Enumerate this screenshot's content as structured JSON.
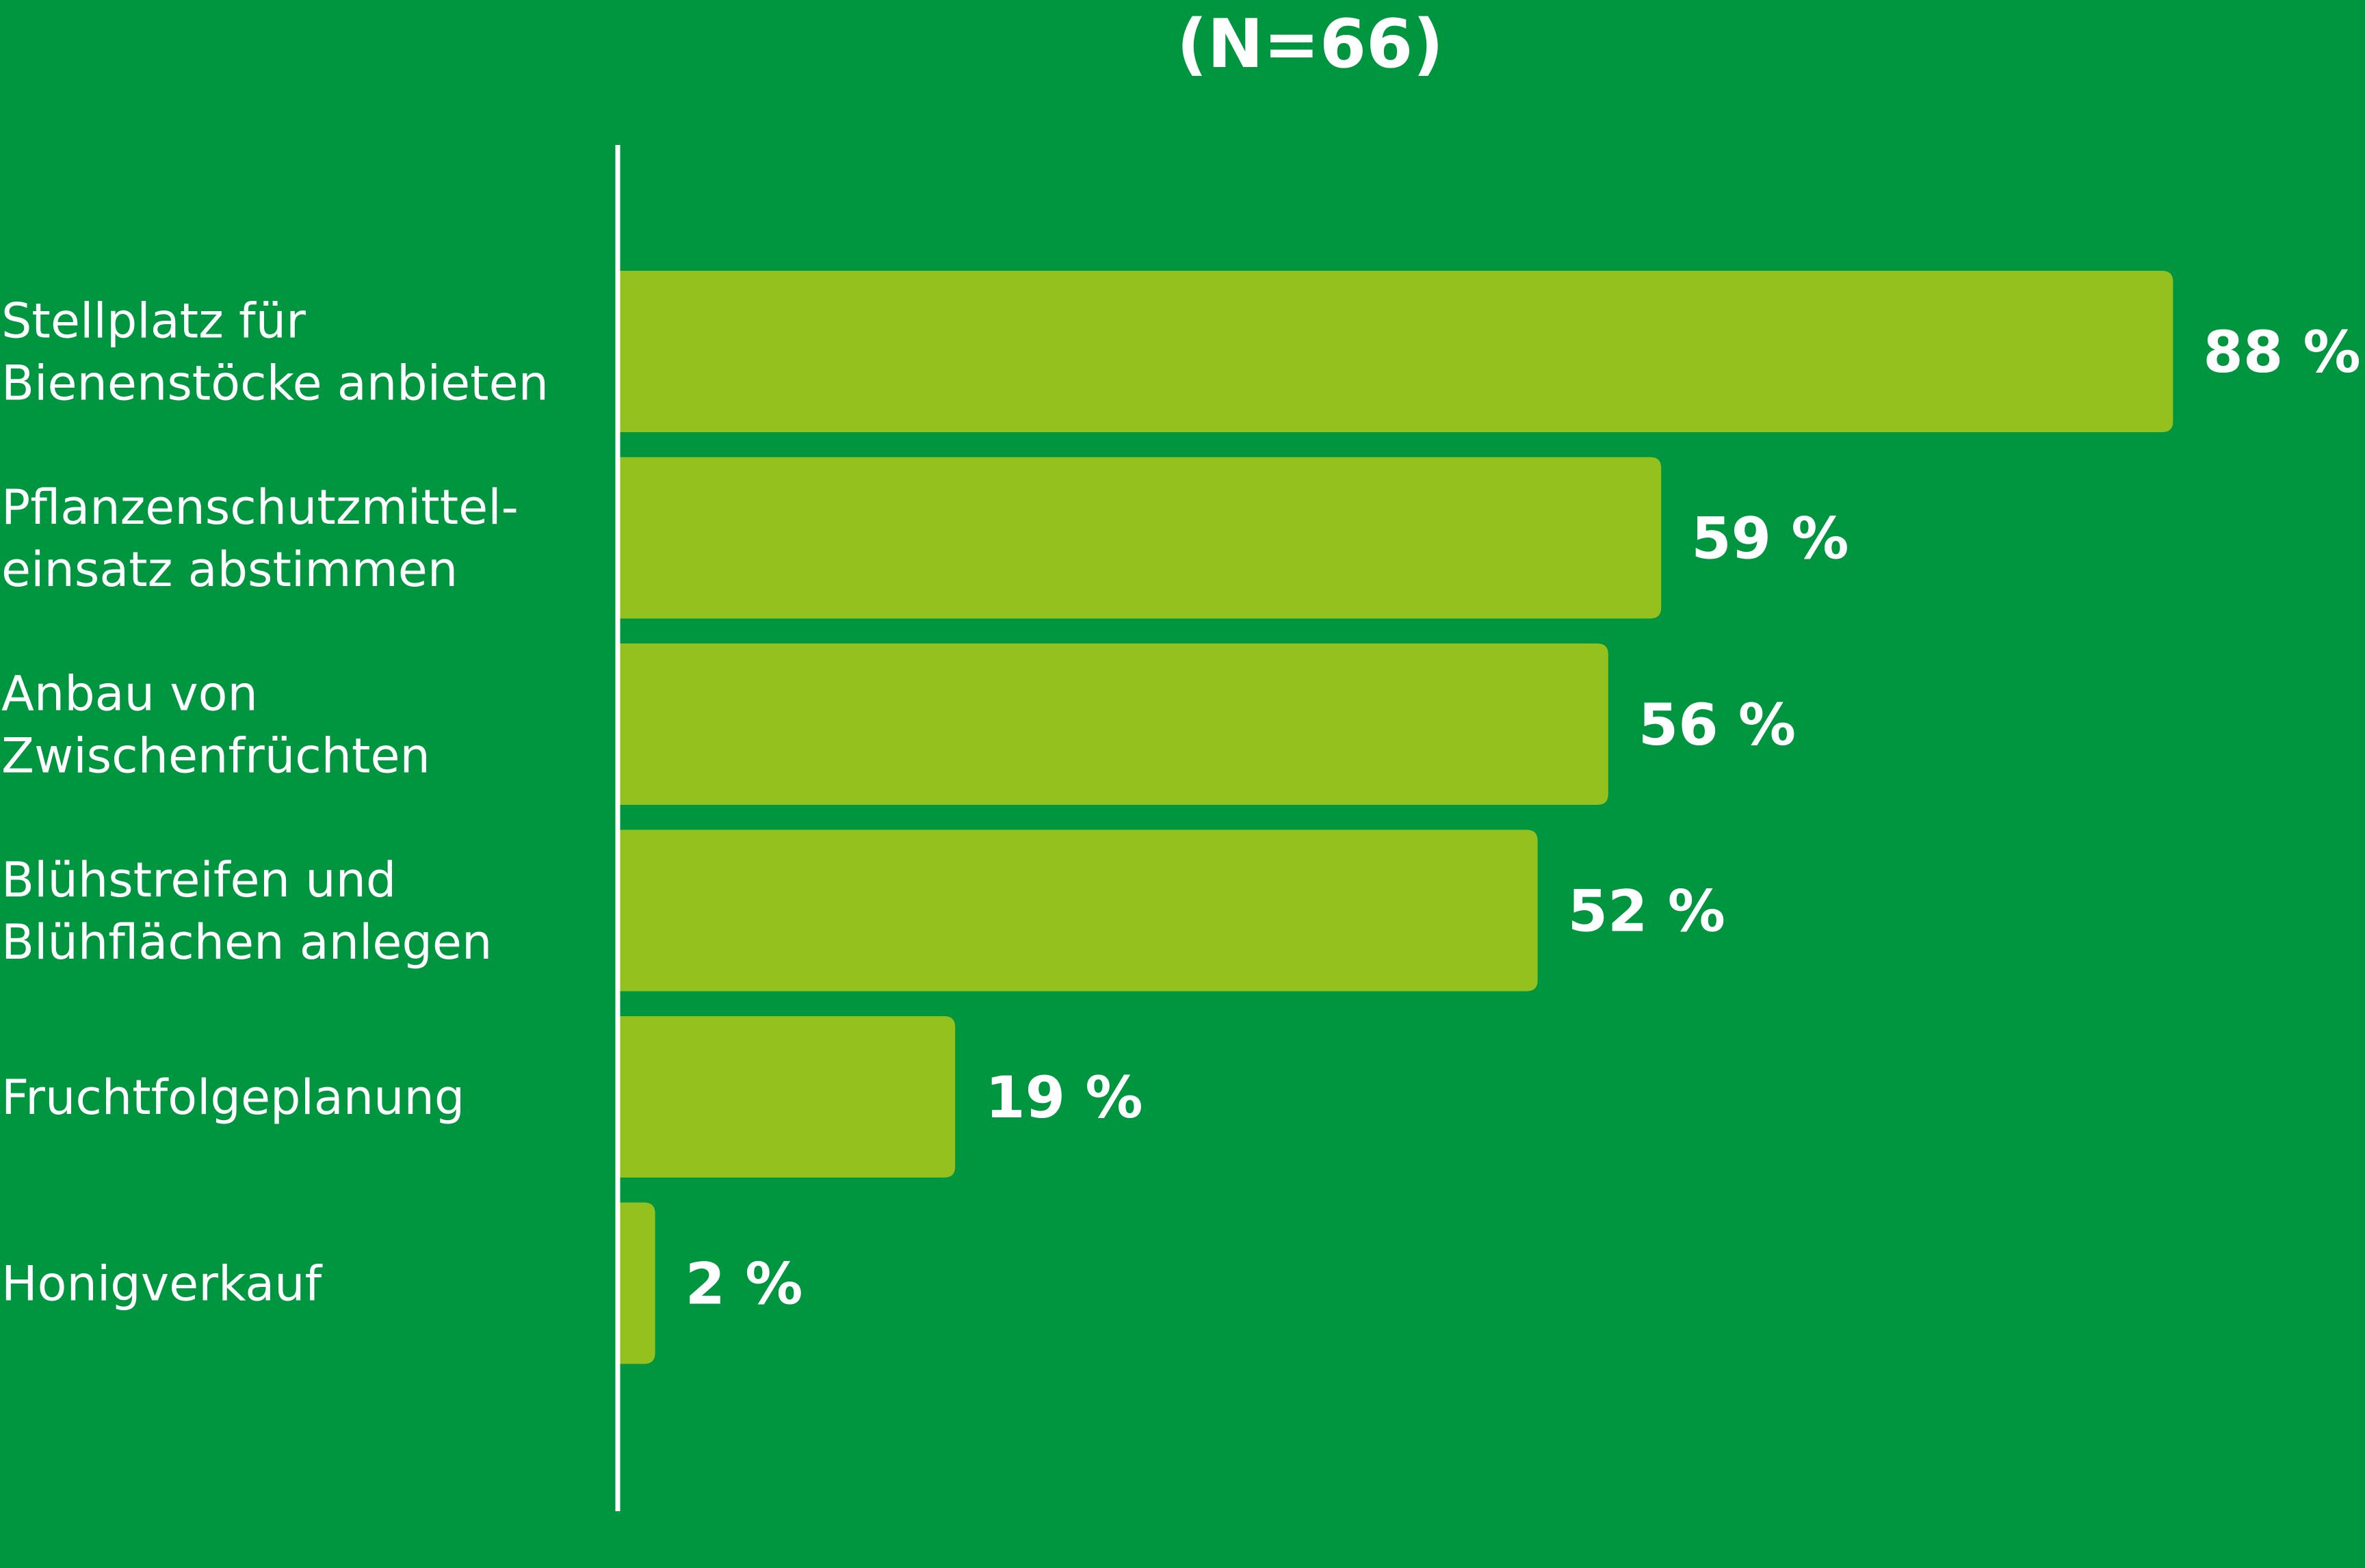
{
  "colors": {
    "background": "#009640",
    "bar": "#95c11f",
    "axis": "#ffffff",
    "text": "#ffffff"
  },
  "chart_data": {
    "type": "bar",
    "orientation": "horizontal",
    "subtitle": "(N=66)",
    "title": "",
    "xlabel": "",
    "ylabel": "",
    "xlim": [
      0,
      100
    ],
    "grid": false,
    "legend": "none",
    "categories": [
      [
        "Stellplatz für",
        "Bienenstöcke anbieten"
      ],
      [
        "Pflanzenschutzmittel-",
        "einsatz abstimmen"
      ],
      [
        "Anbau von",
        "Zwischenfrüchten"
      ],
      [
        "Blühstreifen und",
        "Blühflächen anlegen"
      ],
      [
        "Fruchtfolgeplanung"
      ],
      [
        "Honigverkauf"
      ]
    ],
    "values": [
      88,
      59,
      56,
      52,
      19,
      2
    ],
    "value_labels": [
      "88 %",
      "59 %",
      "56 %",
      "52 %",
      "19 %",
      "2 %"
    ]
  }
}
